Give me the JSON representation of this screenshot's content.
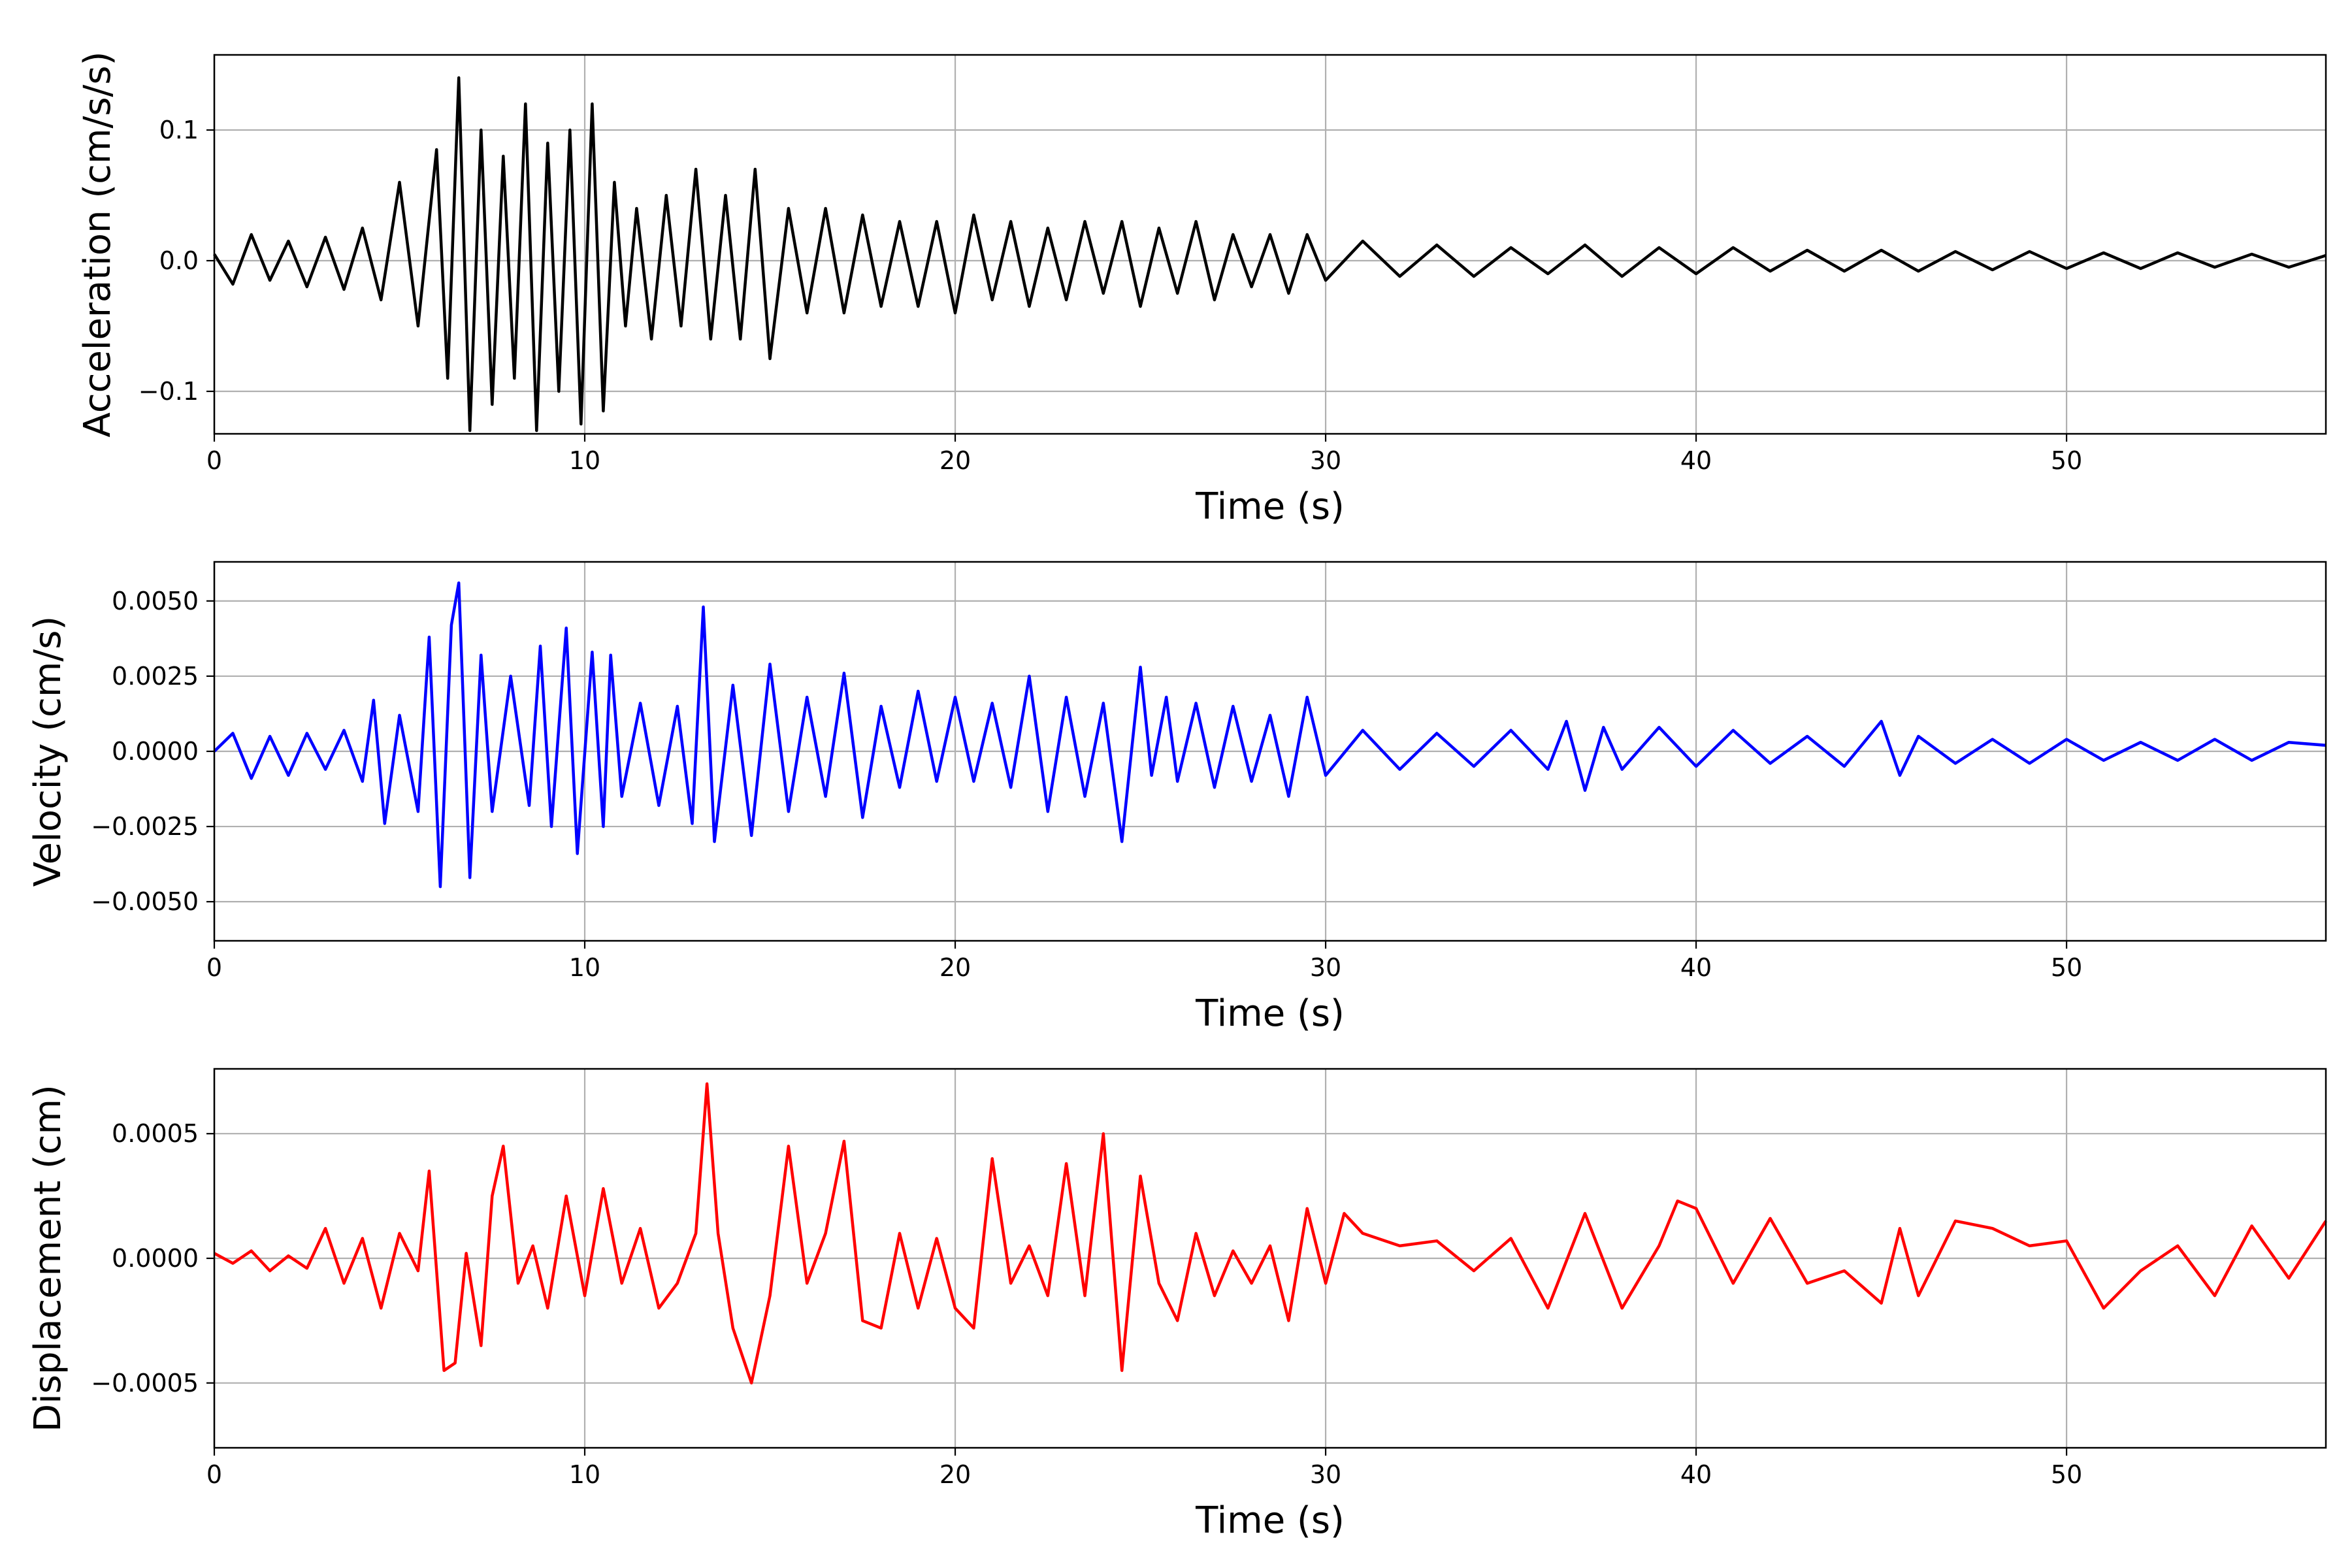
{
  "chart_data": [
    {
      "type": "line",
      "xlabel": "Time (s)",
      "ylabel": "Acceleration (cm/s/s)",
      "xlim": [
        0,
        57
      ],
      "ylim": [
        -0.1325,
        0.1575
      ],
      "xticks": [
        0,
        10,
        20,
        30,
        40,
        50
      ],
      "xtick_labels": [
        "0",
        "10",
        "20",
        "30",
        "40",
        "50"
      ],
      "yticks": [
        -0.1,
        0.0,
        0.1
      ],
      "ytick_labels": [
        "−0.1",
        "0.0",
        "0.1"
      ],
      "grid": true,
      "color": "#000000",
      "series": [
        {
          "x": [
            0.0,
            0.5,
            1.0,
            1.5,
            2.0,
            2.5,
            3.0,
            3.5,
            4.0,
            4.5,
            5.0,
            5.5,
            6.0,
            6.3,
            6.6,
            6.9,
            7.2,
            7.5,
            7.8,
            8.1,
            8.4,
            8.7,
            9.0,
            9.3,
            9.6,
            9.9,
            10.2,
            10.5,
            10.8,
            11.1,
            11.4,
            11.8,
            12.2,
            12.6,
            13.0,
            13.4,
            13.8,
            14.2,
            14.6,
            15.0,
            15.5,
            16.0,
            16.5,
            17.0,
            17.5,
            18.0,
            18.5,
            19.0,
            19.5,
            20.0,
            20.5,
            21.0,
            21.5,
            22.0,
            22.5,
            23.0,
            23.5,
            24.0,
            24.5,
            25.0,
            25.5,
            26.0,
            26.5,
            27.0,
            27.5,
            28.0,
            28.5,
            29.0,
            29.5,
            30.0,
            31.0,
            32.0,
            33.0,
            34.0,
            35.0,
            36.0,
            37.0,
            38.0,
            39.0,
            40.0,
            41.0,
            42.0,
            43.0,
            44.0,
            45.0,
            46.0,
            47.0,
            48.0,
            49.0,
            50.0,
            51.0,
            52.0,
            53.0,
            54.0,
            55.0,
            56.0,
            57.0
          ],
          "y": [
            0.005,
            -0.018,
            0.02,
            -0.015,
            0.015,
            -0.02,
            0.018,
            -0.022,
            0.025,
            -0.03,
            0.06,
            -0.05,
            0.085,
            -0.09,
            0.14,
            -0.13,
            0.1,
            -0.11,
            0.08,
            -0.09,
            0.12,
            -0.13,
            0.09,
            -0.1,
            0.1,
            -0.125,
            0.12,
            -0.115,
            0.06,
            -0.05,
            0.04,
            -0.06,
            0.05,
            -0.05,
            0.07,
            -0.06,
            0.05,
            -0.06,
            0.07,
            -0.075,
            0.04,
            -0.04,
            0.04,
            -0.04,
            0.035,
            -0.035,
            0.03,
            -0.035,
            0.03,
            -0.04,
            0.035,
            -0.03,
            0.03,
            -0.035,
            0.025,
            -0.03,
            0.03,
            -0.025,
            0.03,
            -0.035,
            0.025,
            -0.025,
            0.03,
            -0.03,
            0.02,
            -0.02,
            0.02,
            -0.025,
            0.02,
            -0.015,
            0.015,
            -0.012,
            0.012,
            -0.012,
            0.01,
            -0.01,
            0.012,
            -0.012,
            0.01,
            -0.01,
            0.01,
            -0.008,
            0.008,
            -0.008,
            0.008,
            -0.008,
            0.007,
            -0.007,
            0.007,
            -0.006,
            0.006,
            -0.006,
            0.006,
            -0.005,
            0.005,
            -0.005,
            0.004
          ]
        }
      ]
    },
    {
      "type": "line",
      "xlabel": "Time (s)",
      "ylabel": "Velocity (cm/s)",
      "xlim": [
        0,
        57
      ],
      "ylim": [
        -0.0063,
        0.0063
      ],
      "xticks": [
        0,
        10,
        20,
        30,
        40,
        50
      ],
      "xtick_labels": [
        "0",
        "10",
        "20",
        "30",
        "40",
        "50"
      ],
      "yticks": [
        -0.005,
        -0.0025,
        0.0,
        0.0025,
        0.005
      ],
      "ytick_labels": [
        "−0.0050",
        "−0.0025",
        "0.0000",
        "0.0025",
        "0.0050"
      ],
      "grid": true,
      "color": "#0000ff",
      "series": [
        {
          "x": [
            0.0,
            0.5,
            1.0,
            1.5,
            2.0,
            2.5,
            3.0,
            3.5,
            4.0,
            4.3,
            4.6,
            5.0,
            5.5,
            5.8,
            6.1,
            6.4,
            6.6,
            6.9,
            7.2,
            7.5,
            8.0,
            8.5,
            8.8,
            9.1,
            9.5,
            9.8,
            10.2,
            10.5,
            10.7,
            11.0,
            11.5,
            12.0,
            12.5,
            12.9,
            13.2,
            13.5,
            14.0,
            14.5,
            15.0,
            15.5,
            16.0,
            16.5,
            17.0,
            17.5,
            18.0,
            18.5,
            19.0,
            19.5,
            20.0,
            20.5,
            21.0,
            21.5,
            22.0,
            22.5,
            23.0,
            23.5,
            24.0,
            24.5,
            25.0,
            25.3,
            25.7,
            26.0,
            26.5,
            27.0,
            27.5,
            28.0,
            28.5,
            29.0,
            29.5,
            30.0,
            31.0,
            32.0,
            33.0,
            34.0,
            35.0,
            36.0,
            36.5,
            37.0,
            37.5,
            38.0,
            39.0,
            40.0,
            41.0,
            42.0,
            43.0,
            44.0,
            45.0,
            45.5,
            46.0,
            47.0,
            48.0,
            49.0,
            50.0,
            51.0,
            52.0,
            53.0,
            54.0,
            55.0,
            56.0,
            57.0
          ],
          "y": [
            0.0,
            0.0006,
            -0.0009,
            0.0005,
            -0.0008,
            0.0006,
            -0.0006,
            0.0007,
            -0.001,
            0.0017,
            -0.0024,
            0.0012,
            -0.002,
            0.0038,
            -0.0045,
            0.0042,
            0.0056,
            -0.0042,
            0.0032,
            -0.002,
            0.0025,
            -0.0018,
            0.0035,
            -0.0025,
            0.0041,
            -0.0034,
            0.0033,
            -0.0025,
            0.0032,
            -0.0015,
            0.0016,
            -0.0018,
            0.0015,
            -0.0024,
            0.0048,
            -0.003,
            0.0022,
            -0.0028,
            0.0029,
            -0.002,
            0.0018,
            -0.0015,
            0.0026,
            -0.0022,
            0.0015,
            -0.0012,
            0.002,
            -0.001,
            0.0018,
            -0.001,
            0.0016,
            -0.0012,
            0.0025,
            -0.002,
            0.0018,
            -0.0015,
            0.0016,
            -0.003,
            0.0028,
            -0.0008,
            0.0018,
            -0.001,
            0.0016,
            -0.0012,
            0.0015,
            -0.001,
            0.0012,
            -0.0015,
            0.0018,
            -0.0008,
            0.0007,
            -0.0006,
            0.0006,
            -0.0005,
            0.0007,
            -0.0006,
            0.001,
            -0.0013,
            0.0008,
            -0.0006,
            0.0008,
            -0.0005,
            0.0007,
            -0.0004,
            0.0005,
            -0.0005,
            0.001,
            -0.0008,
            0.0005,
            -0.0004,
            0.0004,
            -0.0004,
            0.0004,
            -0.0003,
            0.0003,
            -0.0003,
            0.0004,
            -0.0003,
            0.0003,
            0.0002
          ]
        }
      ]
    },
    {
      "type": "line",
      "xlabel": "Time (s)",
      "ylabel": "Displacement (cm)",
      "xlim": [
        0,
        57
      ],
      "ylim": [
        -0.00076,
        0.00076
      ],
      "xticks": [
        0,
        10,
        20,
        30,
        40,
        50
      ],
      "xtick_labels": [
        "0",
        "10",
        "20",
        "30",
        "40",
        "50"
      ],
      "yticks": [
        -0.0005,
        0.0,
        0.0005
      ],
      "ytick_labels": [
        "−0.0005",
        "0.0000",
        "0.0005"
      ],
      "grid": true,
      "color": "#ff0000",
      "series": [
        {
          "x": [
            0.0,
            0.5,
            1.0,
            1.5,
            2.0,
            2.5,
            3.0,
            3.5,
            4.0,
            4.5,
            5.0,
            5.5,
            5.8,
            6.2,
            6.5,
            6.8,
            7.2,
            7.5,
            7.8,
            8.2,
            8.6,
            9.0,
            9.5,
            10.0,
            10.5,
            11.0,
            11.5,
            12.0,
            12.5,
            13.0,
            13.3,
            13.6,
            14.0,
            14.5,
            15.0,
            15.5,
            16.0,
            16.5,
            17.0,
            17.5,
            18.0,
            18.5,
            19.0,
            19.5,
            20.0,
            20.5,
            21.0,
            21.5,
            22.0,
            22.5,
            23.0,
            23.5,
            24.0,
            24.5,
            25.0,
            25.5,
            26.0,
            26.5,
            27.0,
            27.5,
            28.0,
            28.5,
            29.0,
            29.5,
            30.0,
            30.5,
            31.0,
            32.0,
            33.0,
            34.0,
            35.0,
            36.0,
            37.0,
            38.0,
            39.0,
            39.5,
            40.0,
            41.0,
            42.0,
            43.0,
            44.0,
            45.0,
            45.5,
            46.0,
            47.0,
            48.0,
            49.0,
            50.0,
            51.0,
            52.0,
            53.0,
            54.0,
            55.0,
            56.0,
            57.0
          ],
          "y": [
            2e-05,
            -2e-05,
            3e-05,
            -5e-05,
            1e-05,
            -4e-05,
            0.00012,
            -0.0001,
            8e-05,
            -0.0002,
            0.0001,
            -5e-05,
            0.00035,
            -0.00045,
            -0.00042,
            2e-05,
            -0.00035,
            0.00025,
            0.00045,
            -0.0001,
            5e-05,
            -0.0002,
            0.00025,
            -0.00015,
            0.00028,
            -0.0001,
            0.00012,
            -0.0002,
            -0.0001,
            0.0001,
            0.0007,
            0.0001,
            -0.00028,
            -0.0005,
            -0.00015,
            0.00045,
            -0.0001,
            0.0001,
            0.00047,
            -0.00025,
            -0.00028,
            0.0001,
            -0.0002,
            8e-05,
            -0.0002,
            -0.00028,
            0.0004,
            -0.0001,
            5e-05,
            -0.00015,
            0.00038,
            -0.00015,
            0.0005,
            -0.00045,
            0.00033,
            -0.0001,
            -0.00025,
            0.0001,
            -0.00015,
            3e-05,
            -0.0001,
            5e-05,
            -0.00025,
            0.0002,
            -0.0001,
            0.00018,
            0.0001,
            5e-05,
            7e-05,
            -5e-05,
            8e-05,
            -0.0002,
            0.00018,
            -0.0002,
            5e-05,
            0.00023,
            0.0002,
            -0.0001,
            0.00016,
            -0.0001,
            -5e-05,
            -0.00018,
            0.00012,
            -0.00015,
            0.00015,
            0.00012,
            5e-05,
            7e-05,
            -0.0002,
            -5e-05,
            5e-05,
            -0.00015,
            0.00013,
            -8e-05,
            0.00015
          ]
        }
      ]
    }
  ]
}
